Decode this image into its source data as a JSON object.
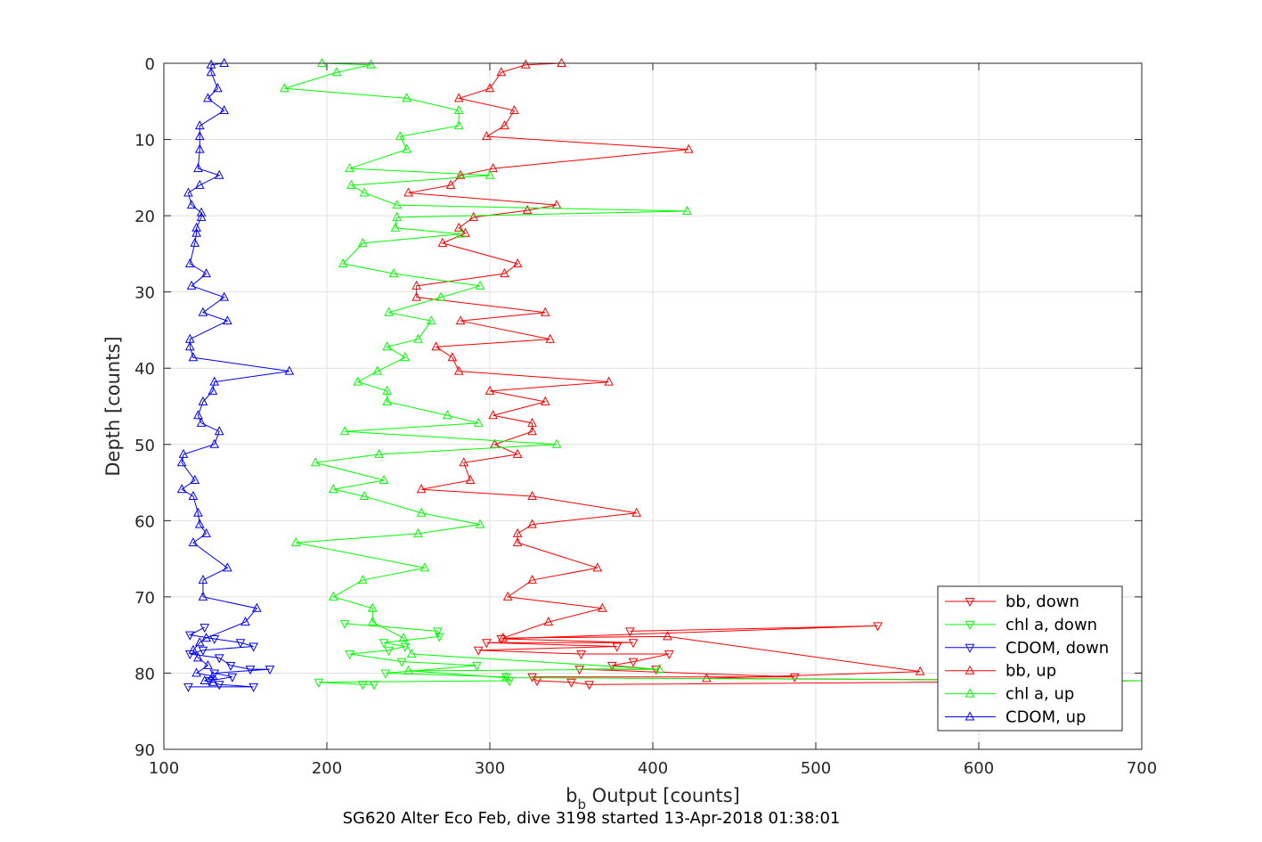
{
  "colors": {
    "red": "#ff0000",
    "green": "#00ff00",
    "blue": "#0000ff"
  },
  "chart_data": {
    "type": "line",
    "title": "SG620 Alter Eco Feb, dive 3198 started 13-Apr-2018 01:38:01",
    "xlabel_main": "b",
    "xlabel_sub": "b",
    "xlabel_rest": " Output [counts]",
    "ylabel": "Depth [counts]",
    "xlim": [
      100,
      700
    ],
    "ylim": [
      0,
      90
    ],
    "y_reversed": true,
    "grid": true,
    "xticks": [
      100,
      200,
      300,
      400,
      500,
      600,
      700
    ],
    "yticks": [
      0,
      10,
      20,
      30,
      40,
      50,
      60,
      70,
      80,
      90
    ],
    "legend_position": "lower-right",
    "series": [
      {
        "name": "bb, down",
        "color": "red",
        "marker": "triangle-down",
        "points": [
          [
            386,
            74.5
          ],
          [
            538,
            73.8
          ],
          [
            307,
            75.5
          ],
          [
            388,
            76.0
          ],
          [
            298,
            76.0
          ],
          [
            378,
            76.5
          ],
          [
            293,
            77.0
          ],
          [
            356,
            77.5
          ],
          [
            410,
            77.5
          ],
          [
            388,
            78.5
          ],
          [
            375,
            79.0
          ],
          [
            402,
            79.5
          ],
          [
            355,
            79.5
          ],
          [
            487,
            80.5
          ],
          [
            326,
            80.5
          ],
          [
            329,
            81.0
          ],
          [
            350,
            81.2
          ],
          [
            361,
            81.5
          ],
          [
            700,
            81.0
          ]
        ]
      },
      {
        "name": "chl a, down",
        "color": "green",
        "marker": "triangle-down",
        "points": [
          [
            211,
            73.5
          ],
          [
            268,
            74.5
          ],
          [
            269,
            75.2
          ],
          [
            235,
            76.0
          ],
          [
            248,
            76.5
          ],
          [
            238,
            77.0
          ],
          [
            214,
            77.5
          ],
          [
            246,
            78.5
          ],
          [
            292,
            79.0
          ],
          [
            236,
            80.0
          ],
          [
            310,
            80.5
          ],
          [
            312,
            81.0
          ],
          [
            195,
            81.2
          ],
          [
            222,
            81.5
          ],
          [
            229,
            81.5
          ]
        ]
      },
      {
        "name": "CDOM, down",
        "color": "blue",
        "marker": "triangle-down",
        "points": [
          [
            125,
            74.0
          ],
          [
            116,
            75.0
          ],
          [
            131,
            75.5
          ],
          [
            147,
            76.0
          ],
          [
            155,
            76.5
          ],
          [
            124,
            77.0
          ],
          [
            116,
            77.5
          ],
          [
            134,
            78.0
          ],
          [
            141,
            79.0
          ],
          [
            153,
            79.5
          ],
          [
            165,
            79.5
          ],
          [
            131,
            80.0
          ],
          [
            142,
            80.5
          ],
          [
            128,
            81.0
          ],
          [
            134,
            81.5
          ],
          [
            155,
            81.8
          ],
          [
            115,
            81.8
          ]
        ]
      },
      {
        "name": "bb, up",
        "color": "red",
        "marker": "triangle-up",
        "points": [
          [
            344,
            0
          ],
          [
            322,
            0.2
          ],
          [
            307,
            1.2
          ],
          [
            300,
            3.3
          ],
          [
            281,
            4.6
          ],
          [
            315,
            6.2
          ],
          [
            309,
            8.2
          ],
          [
            298,
            9.6
          ],
          [
            422,
            11.3
          ],
          [
            302,
            13.8
          ],
          [
            282,
            14.7
          ],
          [
            276,
            16.0
          ],
          [
            250,
            17.0
          ],
          [
            341,
            18.6
          ],
          [
            323,
            19.3
          ],
          [
            290,
            20.2
          ],
          [
            281,
            21.6
          ],
          [
            285,
            22.3
          ],
          [
            271,
            23.6
          ],
          [
            317,
            26.3
          ],
          [
            309,
            27.6
          ],
          [
            255,
            29.2
          ],
          [
            255,
            30.7
          ],
          [
            334,
            32.7
          ],
          [
            282,
            33.8
          ],
          [
            337,
            36.2
          ],
          [
            267,
            37.2
          ],
          [
            277,
            38.6
          ],
          [
            281,
            40.4
          ],
          [
            373,
            41.8
          ],
          [
            300,
            43.0
          ],
          [
            334,
            44.4
          ],
          [
            302,
            46.2
          ],
          [
            326,
            47.2
          ],
          [
            326,
            48.3
          ],
          [
            303,
            50.0
          ],
          [
            317,
            51.3
          ],
          [
            284,
            52.4
          ],
          [
            288,
            54.7
          ],
          [
            258,
            55.9
          ],
          [
            326,
            56.8
          ],
          [
            390,
            59.0
          ],
          [
            326,
            60.5
          ],
          [
            317,
            61.7
          ],
          [
            317,
            62.9
          ],
          [
            366,
            66.2
          ],
          [
            326,
            67.8
          ],
          [
            311,
            70.0
          ],
          [
            369,
            71.5
          ],
          [
            336,
            73.3
          ],
          [
            308,
            75.4
          ],
          [
            409,
            75.2
          ],
          [
            564,
            79.8
          ],
          [
            433,
            80.7
          ],
          [
            700,
            81.0
          ]
        ]
      },
      {
        "name": "chl a, up",
        "color": "green",
        "marker": "triangle-up",
        "points": [
          [
            197,
            0
          ],
          [
            227,
            0.2
          ],
          [
            206,
            1.2
          ],
          [
            174,
            3.3
          ],
          [
            249,
            4.6
          ],
          [
            281,
            6.2
          ],
          [
            281,
            8.2
          ],
          [
            245,
            9.6
          ],
          [
            249,
            11.3
          ],
          [
            214,
            13.8
          ],
          [
            300,
            14.7
          ],
          [
            215,
            16.0
          ],
          [
            223,
            17.0
          ],
          [
            243,
            18.6
          ],
          [
            421,
            19.4
          ],
          [
            243,
            20.2
          ],
          [
            242,
            21.6
          ],
          [
            282,
            22.4
          ],
          [
            222,
            23.6
          ],
          [
            210,
            26.3
          ],
          [
            241,
            27.6
          ],
          [
            294,
            29.2
          ],
          [
            270,
            30.7
          ],
          [
            238,
            32.7
          ],
          [
            264,
            33.8
          ],
          [
            256,
            36.2
          ],
          [
            237,
            37.2
          ],
          [
            248,
            38.6
          ],
          [
            231,
            40.4
          ],
          [
            219,
            41.8
          ],
          [
            237,
            43.0
          ],
          [
            237,
            44.4
          ],
          [
            274,
            46.2
          ],
          [
            293,
            47.2
          ],
          [
            211,
            48.3
          ],
          [
            341,
            50.0
          ],
          [
            232,
            51.3
          ],
          [
            193,
            52.4
          ],
          [
            235,
            54.7
          ],
          [
            204,
            55.9
          ],
          [
            223,
            56.8
          ],
          [
            258,
            59.0
          ],
          [
            294,
            60.5
          ],
          [
            256,
            61.7
          ],
          [
            181,
            62.9
          ],
          [
            260,
            66.2
          ],
          [
            222,
            67.8
          ],
          [
            204,
            70.0
          ],
          [
            228,
            71.5
          ],
          [
            228,
            73.3
          ],
          [
            247,
            75.4
          ],
          [
            252,
            77.5
          ],
          [
            404,
            79.5
          ],
          [
            250,
            79.7
          ],
          [
            310,
            80.6
          ],
          [
            700,
            81.0
          ]
        ]
      },
      {
        "name": "CDOM, up",
        "color": "blue",
        "marker": "triangle-up",
        "points": [
          [
            137,
            0
          ],
          [
            129,
            0.2
          ],
          [
            129,
            1.2
          ],
          [
            133,
            3.3
          ],
          [
            127,
            4.6
          ],
          [
            137,
            6.2
          ],
          [
            122,
            8.2
          ],
          [
            122,
            9.6
          ],
          [
            122,
            11.3
          ],
          [
            121,
            13.8
          ],
          [
            134,
            14.7
          ],
          [
            122,
            16.0
          ],
          [
            115,
            17.0
          ],
          [
            117,
            18.6
          ],
          [
            123,
            19.6
          ],
          [
            123,
            20.2
          ],
          [
            120,
            21.6
          ],
          [
            120,
            22.3
          ],
          [
            119,
            23.6
          ],
          [
            116,
            26.3
          ],
          [
            126,
            27.6
          ],
          [
            117,
            29.2
          ],
          [
            137,
            30.7
          ],
          [
            124,
            32.7
          ],
          [
            139,
            33.8
          ],
          [
            116,
            36.2
          ],
          [
            116,
            37.2
          ],
          [
            118,
            38.6
          ],
          [
            177,
            40.4
          ],
          [
            131,
            41.8
          ],
          [
            130,
            43.0
          ],
          [
            124,
            44.4
          ],
          [
            121,
            46.2
          ],
          [
            123,
            47.2
          ],
          [
            134,
            48.3
          ],
          [
            131,
            50.0
          ],
          [
            112,
            51.3
          ],
          [
            111,
            52.4
          ],
          [
            119,
            54.7
          ],
          [
            111,
            55.9
          ],
          [
            118,
            56.8
          ],
          [
            121,
            59.0
          ],
          [
            122,
            60.5
          ],
          [
            126,
            61.7
          ],
          [
            118,
            62.9
          ],
          [
            139,
            66.2
          ],
          [
            124,
            67.8
          ],
          [
            124,
            70.0
          ],
          [
            157,
            71.5
          ],
          [
            150,
            73.3
          ],
          [
            126,
            75.4
          ],
          [
            122,
            76.0
          ],
          [
            118,
            77.0
          ],
          [
            121,
            78.0
          ],
          [
            127,
            79.0
          ],
          [
            120,
            80.0
          ],
          [
            130,
            80.4
          ],
          [
            125,
            81.0
          ],
          [
            130,
            81.2
          ]
        ]
      }
    ]
  }
}
